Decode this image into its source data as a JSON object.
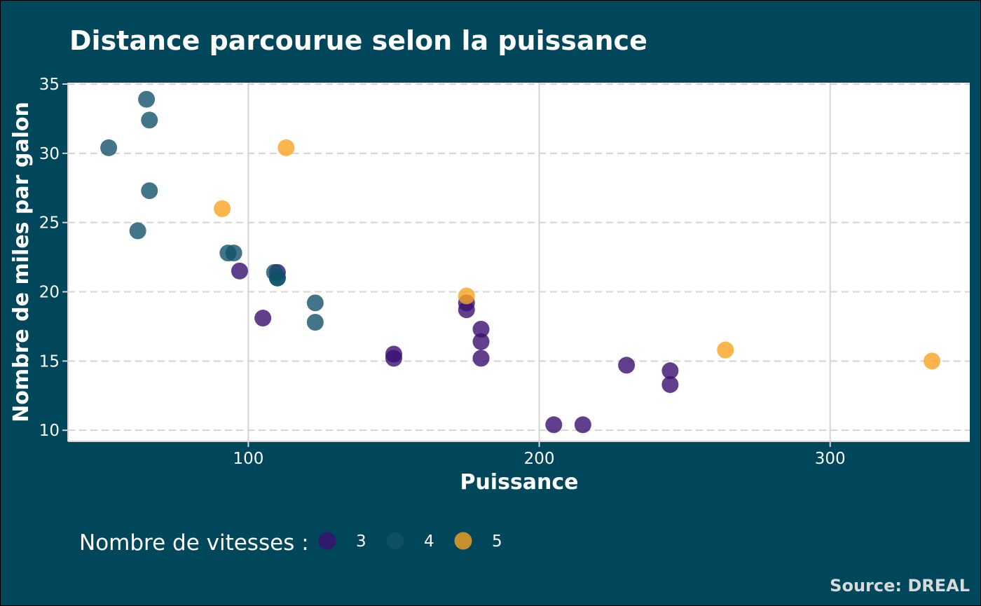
{
  "chart_data": {
    "type": "scatter",
    "title": "Distance parcourue selon la puissance",
    "xlabel": "Puissance",
    "ylabel": "Nombre de miles par galon",
    "xlim": [
      38,
      348
    ],
    "ylim": [
      9.2,
      35.1
    ],
    "xticks": [
      100,
      200,
      300
    ],
    "yticks": [
      10,
      15,
      20,
      25,
      30,
      35
    ],
    "grid": true,
    "legend": {
      "title": "Nombre de vitesses :",
      "placement": "bottom-left",
      "entries": [
        {
          "label": "3",
          "color": "#3B0F70"
        },
        {
          "label": "4",
          "color": "#125369"
        },
        {
          "label": "5",
          "color": "#F9A321"
        }
      ]
    },
    "series": [
      {
        "name": "3",
        "color": "#3B0F70",
        "points": [
          {
            "x": 110,
            "y": 21.4
          },
          {
            "x": 175,
            "y": 18.7
          },
          {
            "x": 105,
            "y": 18.1
          },
          {
            "x": 245,
            "y": 14.3
          },
          {
            "x": 180,
            "y": 16.4
          },
          {
            "x": 180,
            "y": 17.3
          },
          {
            "x": 180,
            "y": 15.2
          },
          {
            "x": 205,
            "y": 10.4
          },
          {
            "x": 215,
            "y": 10.4
          },
          {
            "x": 230,
            "y": 14.7
          },
          {
            "x": 97,
            "y": 21.5
          },
          {
            "x": 150,
            "y": 15.5
          },
          {
            "x": 150,
            "y": 15.2
          },
          {
            "x": 245,
            "y": 13.3
          },
          {
            "x": 175,
            "y": 19.2
          }
        ]
      },
      {
        "name": "4",
        "color": "#125369",
        "points": [
          {
            "x": 110,
            "y": 21.0
          },
          {
            "x": 110,
            "y": 21.0
          },
          {
            "x": 93,
            "y": 22.8
          },
          {
            "x": 62,
            "y": 24.4
          },
          {
            "x": 95,
            "y": 22.8
          },
          {
            "x": 123,
            "y": 19.2
          },
          {
            "x": 123,
            "y": 17.8
          },
          {
            "x": 66,
            "y": 32.4
          },
          {
            "x": 52,
            "y": 30.4
          },
          {
            "x": 65,
            "y": 33.9
          },
          {
            "x": 66,
            "y": 27.3
          },
          {
            "x": 109,
            "y": 21.4
          }
        ]
      },
      {
        "name": "5",
        "color": "#F9A321",
        "points": [
          {
            "x": 91,
            "y": 26.0
          },
          {
            "x": 113,
            "y": 30.4
          },
          {
            "x": 264,
            "y": 15.8
          },
          {
            "x": 175,
            "y": 19.7
          },
          {
            "x": 335,
            "y": 15.0
          }
        ]
      }
    ],
    "caption": "Source: DREAL"
  }
}
